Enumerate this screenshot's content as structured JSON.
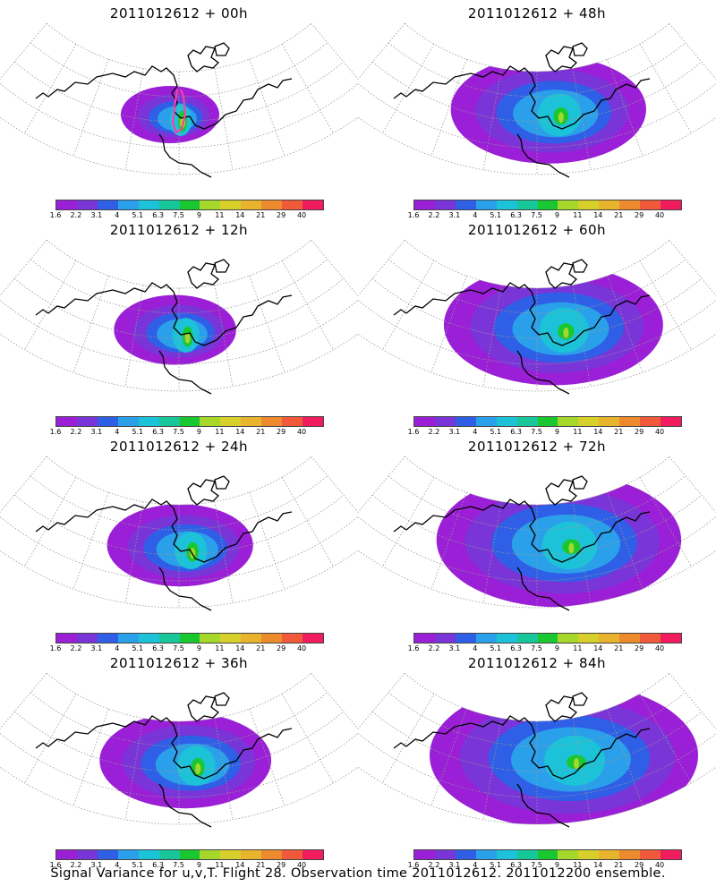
{
  "colorbar": {
    "colors": [
      "#9a1fd6",
      "#7a35d8",
      "#2f5fe6",
      "#2ba0ea",
      "#1cc3d8",
      "#17c79a",
      "#19c730",
      "#a5d82a",
      "#d8d02a",
      "#e8b42d",
      "#ec8a2d",
      "#f05a3a",
      "#f01c5e"
    ],
    "ticks": [
      "1.6",
      "2.2",
      "3.1",
      "4",
      "5.1",
      "6.3",
      "7.5",
      "9",
      "11",
      "14",
      "21",
      "29",
      "40"
    ]
  },
  "panels": [
    {
      "title": "2011012612 + 00h",
      "spread": 0.0
    },
    {
      "title": "2011012612 + 48h",
      "spread": 0.57
    },
    {
      "title": "2011012612 + 12h",
      "spread": 0.14
    },
    {
      "title": "2011012612 + 60h",
      "spread": 0.71
    },
    {
      "title": "2011012612 + 24h",
      "spread": 0.28
    },
    {
      "title": "2011012612 + 72h",
      "spread": 0.86
    },
    {
      "title": "2011012612 + 36h",
      "spread": 0.43
    },
    {
      "title": "2011012612 + 84h",
      "spread": 1.0
    }
  ],
  "footer": "Signal Variance for u,v,T. Flight 28. Observation time 2011012612. 2011012200 ensemble.",
  "colors": {
    "grid": "#999999",
    "coast": "#000000",
    "track": "#ff3cab"
  }
}
